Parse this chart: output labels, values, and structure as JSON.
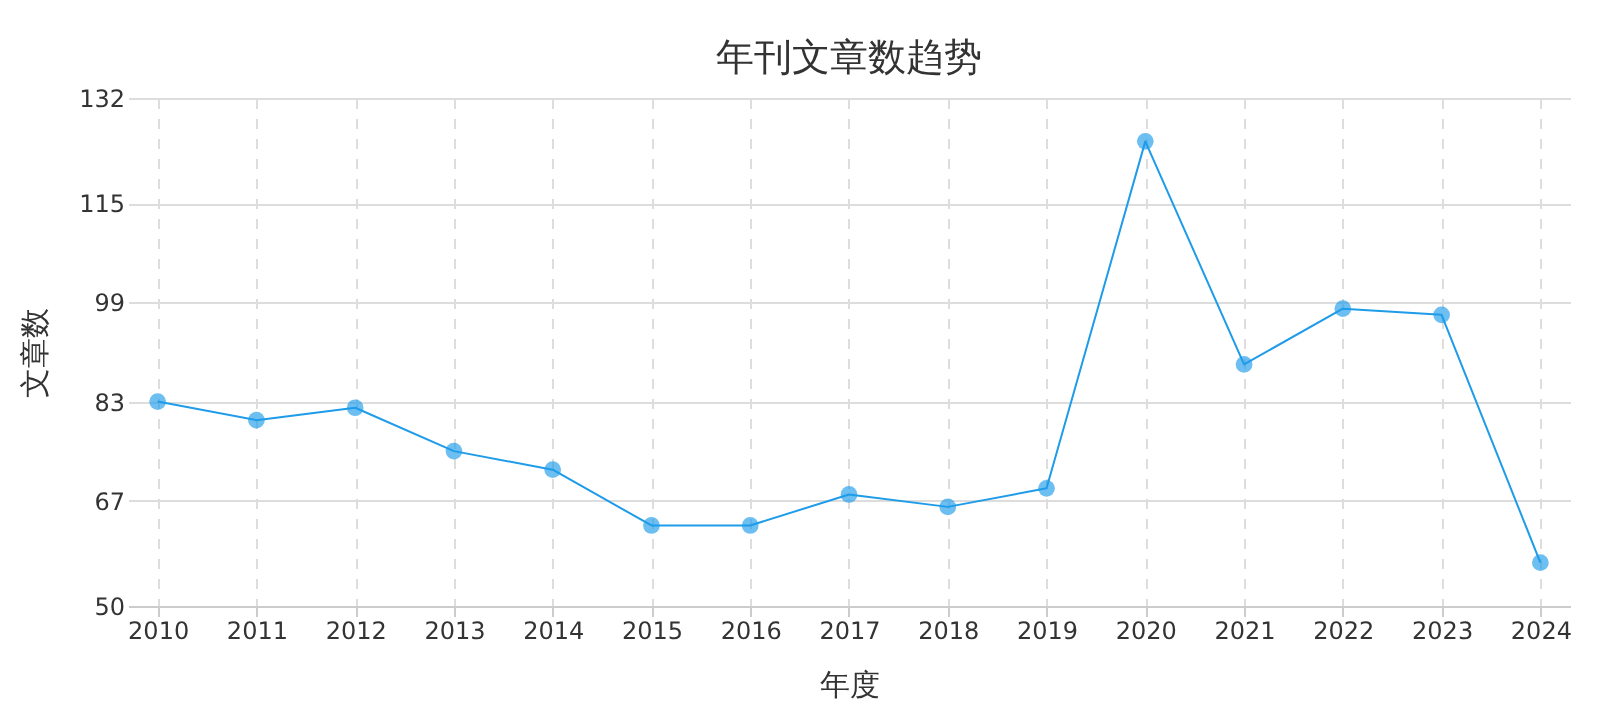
{
  "chart_data": {
    "type": "line",
    "title": "年刊文章数趋势",
    "xlabel": "年度",
    "ylabel": "文章数",
    "categories": [
      "2010",
      "2011",
      "2012",
      "2013",
      "2014",
      "2015",
      "2016",
      "2017",
      "2018",
      "2019",
      "2020",
      "2021",
      "2022",
      "2023",
      "2024"
    ],
    "series": [
      {
        "color": "#1e9be9",
        "values": [
          83,
          80,
          82,
          75,
          72,
          63,
          63,
          68,
          66,
          69,
          125,
          89,
          98,
          97,
          57
        ]
      }
    ],
    "ylim": [
      50,
      132
    ],
    "yticks": [
      50,
      67,
      83,
      99,
      115,
      132
    ],
    "grid": true,
    "marker": "circle",
    "line_style": "solid"
  }
}
